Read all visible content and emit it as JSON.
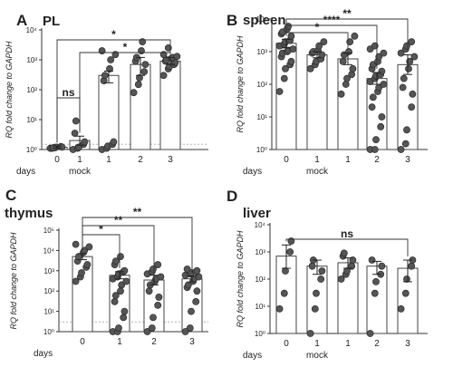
{
  "chart_data": [
    {
      "type": "scatter",
      "panel_letter": "A",
      "title": "PL",
      "ylabel": "RQ fold change to GAPDH",
      "yscale": "log",
      "ylim_exponents": [
        0,
        4
      ],
      "ytick_labels": [
        "10⁰",
        "10¹",
        "10²",
        "10³",
        "10⁴"
      ],
      "categories": [
        "0",
        "1",
        "1",
        "2",
        "3"
      ],
      "group_label": "mock",
      "group_label_under": 1,
      "days_label": "days",
      "bar_means": [
        1.2,
        2,
        300,
        700,
        900
      ],
      "error_bars": [
        [
          1.1,
          1.3
        ],
        [
          1.4,
          2.8
        ],
        [
          170,
          420
        ],
        [
          300,
          1200
        ],
        [
          700,
          1200
        ]
      ],
      "points": [
        [
          1.1,
          1.15,
          1.2,
          1.25,
          1.2,
          1.1,
          1.15
        ],
        [
          1.0,
          1.1,
          1.2,
          1.5,
          1.8,
          3.5,
          9
        ],
        [
          1.0,
          1.1,
          1.3,
          1.5,
          1.8,
          200,
          300,
          500,
          1000,
          1500,
          2000
        ],
        [
          80,
          150,
          250,
          400,
          700,
          900,
          1200,
          2000,
          4000
        ],
        [
          300,
          500,
          600,
          700,
          800,
          900,
          1000,
          1100,
          1200,
          1300,
          1500,
          2500
        ]
      ],
      "baseline": 1.5,
      "comparisons": [
        {
          "from": 0,
          "to": 1,
          "label": "ns"
        },
        {
          "from": 0,
          "to": 4,
          "label": "*"
        },
        {
          "from": 1,
          "to": 4,
          "label": "*"
        }
      ]
    },
    {
      "type": "scatter",
      "panel_letter": "B",
      "title": "spleen",
      "ylabel": "RQ fold change to GAPDH",
      "yscale": "log",
      "ylim_exponents": [
        0,
        4
      ],
      "ytick_labels": [
        "10⁰",
        "10¹",
        "10²",
        "10³",
        "10⁴"
      ],
      "categories": [
        "0",
        "1",
        "1",
        "2",
        "3"
      ],
      "group_label": "mock",
      "group_label_under": 1,
      "days_label": "days",
      "bar_means": [
        1800,
        800,
        600,
        150,
        400
      ],
      "error_bars": [
        [
          1300,
          2400
        ],
        [
          650,
          1000
        ],
        [
          400,
          900
        ],
        [
          100,
          230
        ],
        [
          200,
          800
        ]
      ],
      "points": [
        [
          60,
          150,
          300,
          400,
          500,
          700,
          900,
          1000,
          1100,
          1200,
          1500,
          1700,
          2000,
          2200,
          3000,
          3500,
          4000,
          5000,
          6000
        ],
        [
          300,
          400,
          500,
          600,
          800,
          900,
          1000,
          1100,
          1500,
          2000
        ],
        [
          50,
          100,
          150,
          200,
          300,
          500,
          800,
          1000,
          2000,
          3000
        ],
        [
          1.0,
          1.0,
          2,
          5,
          10,
          20,
          40,
          60,
          80,
          100,
          120,
          150,
          180,
          200,
          250,
          300,
          400,
          500,
          700,
          900,
          1200,
          1500
        ],
        [
          1.0,
          1.5,
          4,
          20,
          50,
          80,
          150,
          300,
          500,
          700,
          900,
          1200,
          1500,
          2000
        ]
      ],
      "baseline": null,
      "comparisons": [
        {
          "from": 0,
          "to": 2,
          "label": "*"
        },
        {
          "from": 0,
          "to": 3,
          "label": "****"
        },
        {
          "from": 0,
          "to": 4,
          "label": "**"
        }
      ]
    },
    {
      "type": "scatter",
      "panel_letter": "C",
      "title": "thymus",
      "ylabel": "RQ fold change to GAPDH",
      "yscale": "log",
      "ylim_exponents": [
        0,
        5
      ],
      "ytick_labels": [
        "10⁰",
        "10¹",
        "10²",
        "10³",
        "10⁴",
        "10⁵"
      ],
      "categories": [
        "0",
        "1",
        "2",
        "3"
      ],
      "group_label": null,
      "group_label_under": null,
      "days_label": "days",
      "bar_means": [
        5000,
        600,
        350,
        400
      ],
      "error_bars": [
        [
          3500,
          7000
        ],
        [
          400,
          900
        ],
        [
          200,
          600
        ],
        [
          280,
          550
        ]
      ],
      "points": [
        [
          300,
          500,
          800,
          1500,
          2000,
          3000,
          5000,
          8000,
          10000,
          15000,
          20000
        ],
        [
          1.0,
          1.0,
          1.5,
          5,
          10,
          30,
          60,
          100,
          200,
          300,
          400,
          500,
          700,
          900,
          1000,
          2000,
          3000,
          5000
        ],
        [
          1.0,
          1.5,
          5,
          20,
          50,
          100,
          200,
          300,
          400,
          500,
          700,
          900,
          1200,
          2000
        ],
        [
          1.0,
          1.5,
          10,
          30,
          100,
          150,
          200,
          300,
          400,
          500,
          600,
          700,
          800,
          900,
          1000,
          1200
        ]
      ],
      "baseline": 3,
      "comparisons": [
        {
          "from": 0,
          "to": 1,
          "label": "*"
        },
        {
          "from": 0,
          "to": 2,
          "label": "**"
        },
        {
          "from": 0,
          "to": 3,
          "label": "**"
        }
      ]
    },
    {
      "type": "scatter",
      "panel_letter": "D",
      "title": "liver",
      "ylabel": "RQ fold change to GAPDH",
      "yscale": "log",
      "ylim_exponents": [
        0,
        4
      ],
      "ytick_labels": [
        "10⁰",
        "10¹",
        "10²",
        "10³",
        "10⁴"
      ],
      "categories": [
        "0",
        "1",
        "1",
        "2",
        "3"
      ],
      "group_label": "mock",
      "group_label_under": 1,
      "days_label": "days",
      "bar_means": [
        700,
        300,
        400,
        300,
        250
      ],
      "error_bars": [
        [
          250,
          1800
        ],
        [
          150,
          500
        ],
        [
          250,
          600
        ],
        [
          150,
          450
        ],
        [
          80,
          500
        ]
      ],
      "points": [
        [
          8,
          30,
          200,
          1000,
          2500
        ],
        [
          1.0,
          8,
          30,
          100,
          200,
          300,
          500
        ],
        [
          100,
          150,
          200,
          300,
          500,
          700,
          900
        ],
        [
          1.0,
          30,
          80,
          150,
          300,
          500
        ],
        [
          8,
          30,
          100,
          300,
          500
        ]
      ],
      "baseline": null,
      "comparisons": [
        {
          "from": 0,
          "to": 4,
          "label": "ns"
        }
      ]
    }
  ]
}
